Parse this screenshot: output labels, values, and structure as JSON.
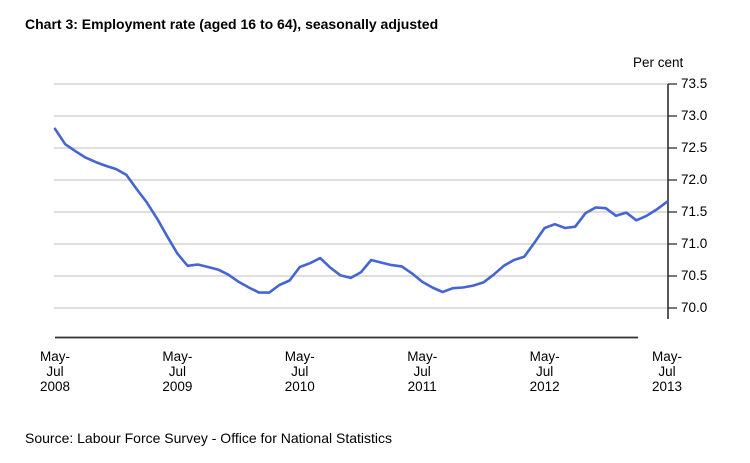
{
  "title": "Chart 3: Employment rate (aged 16 to 64), seasonally adjusted",
  "y_axis_title": "Per cent",
  "source": "Source: Labour Force Survey - Office for National Statistics",
  "colors": {
    "line": "#4565d3",
    "grid": "#c9c9c9",
    "axis": "#303030",
    "text": "#000000"
  },
  "chart_data": {
    "type": "line",
    "title": "Chart 3: Employment rate (aged 16 to 64), seasonally adjusted",
    "ylabel": "Per cent",
    "ylim": [
      70.0,
      73.5
    ],
    "y_tick_step": 0.5,
    "y_ticks": [
      "73.5",
      "73.0",
      "72.5",
      "72.0",
      "71.5",
      "71.0",
      "70.5",
      "70.0"
    ],
    "grid": "horizontal",
    "legend": "none",
    "x_start_period": "May-Jul 2008",
    "x_end_period": "May-Jul 2013",
    "frequency": "monthly rolling 3-month periods",
    "x_tick_labels": [
      [
        "May-",
        "Jul",
        "2008"
      ],
      [
        "May-",
        "Jul",
        "2009"
      ],
      [
        "May-",
        "Jul",
        "2010"
      ],
      [
        "May-",
        "Jul",
        "2011"
      ],
      [
        "May-",
        "Jul",
        "2012"
      ],
      [
        "May-",
        "Jul",
        "2013"
      ]
    ],
    "x_ticks_every_n_points": 12,
    "series": [
      {
        "name": "Employment rate (aged 16 to 64), seasonally adjusted",
        "values": [
          72.8,
          72.56,
          72.45,
          72.35,
          72.28,
          72.22,
          72.17,
          72.08,
          71.86,
          71.65,
          71.4,
          71.12,
          70.85,
          70.66,
          70.68,
          70.64,
          70.6,
          70.52,
          70.41,
          70.32,
          70.24,
          70.24,
          70.36,
          70.43,
          70.64,
          70.7,
          70.78,
          70.63,
          70.51,
          70.47,
          70.56,
          70.75,
          70.71,
          70.67,
          70.65,
          70.54,
          70.41,
          70.32,
          70.25,
          70.31,
          70.32,
          70.35,
          70.4,
          70.52,
          70.66,
          70.75,
          70.8,
          71.02,
          71.25,
          71.31,
          71.25,
          71.27,
          71.48,
          71.57,
          71.56,
          71.44,
          71.49,
          71.37,
          71.44,
          71.54,
          71.66
        ]
      }
    ]
  }
}
